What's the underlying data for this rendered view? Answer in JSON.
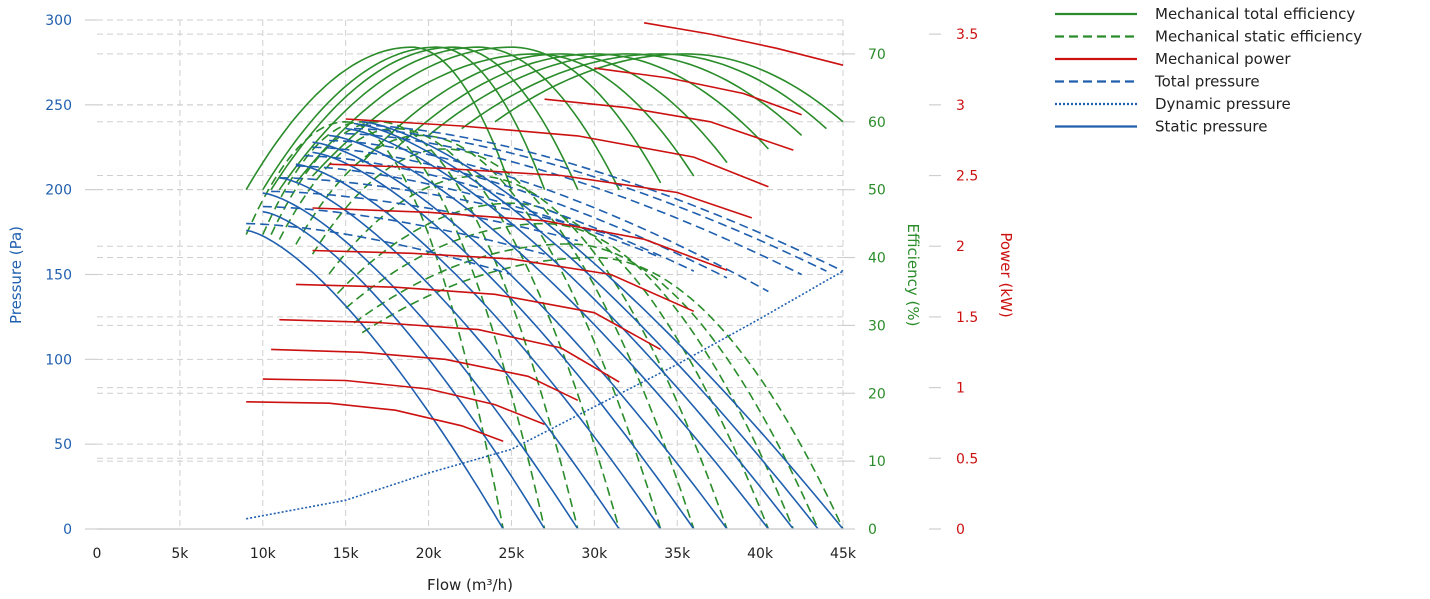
{
  "colors": {
    "green": "#2a8c2a",
    "red": "#cc1111",
    "blue": "#1f5fae",
    "grid": "#cfcfcf"
  },
  "chart_data": {
    "type": "line",
    "title": "",
    "xlabel": "Flow (m³/h)",
    "ylabel_left": "Pressure (Pa)",
    "ylabel_right_1": "Efficiency (%)",
    "ylabel_right_2": "Power (kW)",
    "xlim": [
      0,
      45000
    ],
    "ylim_pressure": [
      0,
      300
    ],
    "ylim_efficiency": [
      0,
      75
    ],
    "ylim_power": [
      0,
      3.6
    ],
    "x_ticks": [
      0,
      5000,
      10000,
      15000,
      20000,
      25000,
      30000,
      35000,
      40000,
      45000
    ],
    "x_tick_labels": [
      "0",
      "5k",
      "10k",
      "15k",
      "20k",
      "25k",
      "30k",
      "35k",
      "40k",
      "45k"
    ],
    "pressure_ticks": [
      0,
      50,
      100,
      150,
      200,
      250,
      300
    ],
    "efficiency_ticks": [
      0,
      10,
      20,
      30,
      40,
      50,
      60,
      70
    ],
    "power_ticks": [
      0,
      0.5,
      1,
      1.5,
      2,
      2.5,
      3,
      3.5
    ],
    "power_tick_labels": [
      "0",
      "0.5",
      "1",
      "1.5",
      "2",
      "2.5",
      "3",
      "3.5"
    ],
    "grid": true,
    "legend_position": "top-right",
    "legend": [
      {
        "label": "Mechanical total efficiency",
        "color": "#2a8c2a",
        "style": "solid"
      },
      {
        "label": "Mechanical static efficiency",
        "color": "#2a8c2a",
        "style": "dashed"
      },
      {
        "label": "Mechanical power",
        "color": "#cc1111",
        "style": "solid"
      },
      {
        "label": "Total pressure",
        "color": "#1f5fae",
        "style": "dashed"
      },
      {
        "label": "Dynamic pressure",
        "color": "#1f5fae",
        "style": "dotted"
      },
      {
        "label": "Static pressure",
        "color": "#1f5fae",
        "style": "solid"
      }
    ],
    "dynamic_pressure": [
      [
        9000,
        6
      ],
      [
        15000,
        17
      ],
      [
        20000,
        33
      ],
      [
        25000,
        47
      ],
      [
        30000,
        72
      ],
      [
        35000,
        97
      ],
      [
        40000,
        124
      ],
      [
        45000,
        152
      ]
    ],
    "static_pressure_curves": [
      {
        "qmin": 9000,
        "p0": 176,
        "qmax": 24500
      },
      {
        "qmin": 10000,
        "p0": 187,
        "qmax": 27000
      },
      {
        "qmin": 10000,
        "p0": 198,
        "qmax": 29000
      },
      {
        "qmin": 11000,
        "p0": 207,
        "qmax": 31500
      },
      {
        "qmin": 12000,
        "p0": 215,
        "qmax": 34000
      },
      {
        "qmin": 13000,
        "p0": 222,
        "qmax": 36000
      },
      {
        "qmin": 13000,
        "p0": 228,
        "qmax": 38000
      },
      {
        "qmin": 14000,
        "p0": 232,
        "qmax": 40500
      },
      {
        "qmin": 15000,
        "p0": 236,
        "qmax": 42000
      },
      {
        "qmin": 15500,
        "p0": 239,
        "qmax": 43500
      },
      {
        "qmin": 16000,
        "p0": 240,
        "qmax": 45000
      }
    ],
    "total_pressure_curves": [
      {
        "qmin": 9000,
        "q1": 25000,
        "p1": 150,
        "p0": 180
      },
      {
        "qmin": 10000,
        "q1": 27000,
        "p1": 162,
        "p0": 190
      },
      {
        "qmin": 10500,
        "q1": 29000,
        "p1": 170,
        "p0": 199
      },
      {
        "qmin": 11000,
        "q1": 31500,
        "p1": 172,
        "p0": 207
      },
      {
        "qmin": 12000,
        "q1": 34000,
        "p1": 160,
        "p0": 214
      },
      {
        "qmin": 12500,
        "q1": 36000,
        "p1": 152,
        "p0": 220
      },
      {
        "qmin": 13000,
        "q1": 38000,
        "p1": 148,
        "p0": 225
      },
      {
        "qmin": 14000,
        "q1": 40500,
        "p1": 140,
        "p0": 229
      },
      {
        "qmin": 15000,
        "q1": 42500,
        "p1": 150,
        "p0": 233
      },
      {
        "qmin": 15500,
        "q1": 44000,
        "p1": 152,
        "p0": 236
      },
      {
        "qmin": 16000,
        "q1": 45000,
        "p1": 152,
        "p0": 238
      }
    ],
    "total_efficiency_curves": [
      {
        "qmin": 9000,
        "qmax": 25000,
        "qpeak": 19000,
        "peak": 71,
        "emin": 50
      },
      {
        "qmin": 10000,
        "qmax": 27000,
        "qpeak": 20500,
        "peak": 71,
        "emin": 50
      },
      {
        "qmin": 10500,
        "qmax": 29000,
        "qpeak": 21500,
        "peak": 71,
        "emin": 50
      },
      {
        "qmin": 11000,
        "qmax": 31500,
        "qpeak": 23000,
        "peak": 71,
        "emin": 50
      },
      {
        "qmin": 12000,
        "qmax": 34000,
        "qpeak": 25000,
        "peak": 71,
        "emin": 51
      },
      {
        "qmin": 13000,
        "qmax": 36000,
        "qpeak": 26500,
        "peak": 70,
        "emin": 52
      },
      {
        "qmin": 16000,
        "qmax": 38000,
        "qpeak": 28000,
        "peak": 70,
        "emin": 54
      },
      {
        "qmin": 18000,
        "qmax": 40500,
        "qpeak": 30000,
        "peak": 70,
        "emin": 56
      },
      {
        "qmin": 20000,
        "qmax": 42500,
        "qpeak": 32000,
        "peak": 70,
        "emin": 58
      },
      {
        "qmin": 22000,
        "qmax": 44000,
        "qpeak": 34000,
        "peak": 70,
        "emin": 59
      },
      {
        "qmin": 24000,
        "qmax": 45000,
        "qpeak": 35500,
        "peak": 70,
        "emin": 60
      }
    ],
    "static_efficiency_curves": [
      {
        "qmin": 9000,
        "qmax": 24500,
        "qpeak": 15000,
        "peak": 60
      },
      {
        "qmin": 10000,
        "qmax": 27000,
        "qpeak": 16000,
        "peak": 60
      },
      {
        "qmin": 10500,
        "qmax": 29000,
        "qpeak": 17000,
        "peak": 60
      },
      {
        "qmin": 11000,
        "qmax": 31500,
        "qpeak": 18000,
        "peak": 59
      },
      {
        "qmin": 12000,
        "qmax": 34000,
        "qpeak": 19500,
        "peak": 58
      },
      {
        "qmin": 13000,
        "qmax": 36000,
        "qpeak": 21000,
        "peak": 56
      },
      {
        "qmin": 14000,
        "qmax": 38000,
        "qpeak": 23000,
        "peak": 52
      },
      {
        "qmin": 14500,
        "qmax": 40500,
        "qpeak": 25000,
        "peak": 48
      },
      {
        "qmin": 15000,
        "qmax": 42000,
        "qpeak": 27000,
        "peak": 45
      },
      {
        "qmin": 15500,
        "qmax": 43500,
        "qpeak": 28500,
        "peak": 42
      },
      {
        "qmin": 16000,
        "qmax": 45000,
        "qpeak": 30000,
        "peak": 40
      }
    ],
    "power_curves": [
      {
        "x": [
          9000,
          14000,
          18000,
          22000,
          24500
        ],
        "y": [
          0.9,
          0.89,
          0.84,
          0.73,
          0.62
        ]
      },
      {
        "x": [
          10000,
          15000,
          20000,
          24000,
          27000
        ],
        "y": [
          1.06,
          1.05,
          0.99,
          0.88,
          0.74
        ]
      },
      {
        "x": [
          10500,
          16000,
          21000,
          26000,
          29000
        ],
        "y": [
          1.27,
          1.25,
          1.2,
          1.08,
          0.91
        ]
      },
      {
        "x": [
          11000,
          17000,
          23000,
          28000,
          31500
        ],
        "y": [
          1.48,
          1.46,
          1.41,
          1.28,
          1.04
        ]
      },
      {
        "x": [
          12000,
          18000,
          24000,
          30000,
          34000
        ],
        "y": [
          1.73,
          1.71,
          1.66,
          1.53,
          1.27
        ]
      },
      {
        "x": [
          13000,
          19000,
          25000,
          31000,
          36000
        ],
        "y": [
          1.97,
          1.95,
          1.91,
          1.8,
          1.54
        ]
      },
      {
        "x": [
          13000,
          20000,
          27000,
          33000,
          38000
        ],
        "y": [
          2.27,
          2.24,
          2.18,
          2.05,
          1.83
        ]
      },
      {
        "x": [
          14000,
          21000,
          28000,
          35000,
          39500
        ],
        "y": [
          2.58,
          2.55,
          2.5,
          2.38,
          2.2
        ]
      },
      {
        "x": [
          15000,
          22000,
          29000,
          36000,
          40500
        ],
        "y": [
          2.9,
          2.85,
          2.78,
          2.63,
          2.42
        ]
      },
      {
        "x": [
          27000,
          32000,
          37000,
          42000
        ],
        "y": [
          3.04,
          2.98,
          2.88,
          2.68
        ]
      },
      {
        "x": [
          30000,
          34500,
          39000,
          42500
        ],
        "y": [
          3.26,
          3.19,
          3.08,
          2.93
        ]
      },
      {
        "x": [
          33000,
          37000,
          41000,
          45000
        ],
        "y": [
          3.58,
          3.5,
          3.4,
          3.28
        ]
      }
    ]
  }
}
